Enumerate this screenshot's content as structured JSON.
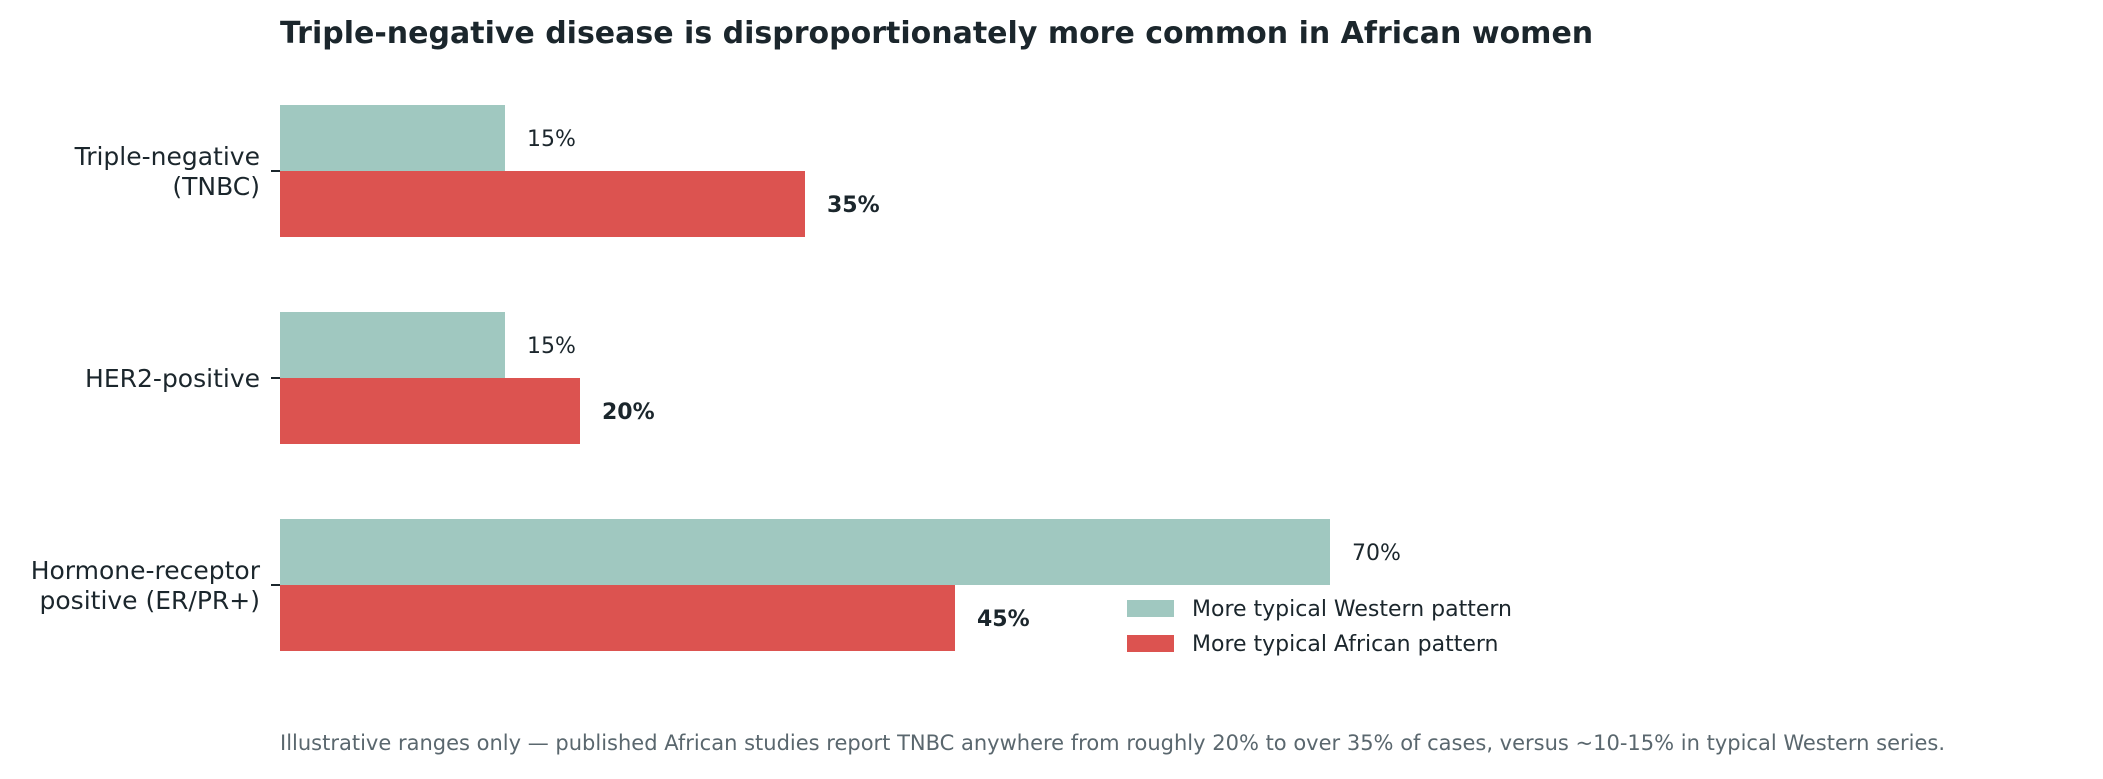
{
  "chart_data": {
    "type": "bar",
    "orientation": "horizontal",
    "title": "Triple-negative disease is disproportionately more common in African women",
    "categories": [
      [
        "Triple-negative",
        "(TNBC)"
      ],
      [
        "HER2-positive"
      ],
      [
        "Hormone-receptor",
        "positive (ER/PR+)"
      ]
    ],
    "series": [
      {
        "name": "More typical Western pattern",
        "color": "#a0c8c0",
        "values": [
          15,
          15,
          70
        ],
        "labels": [
          "15%",
          "15%",
          "70%"
        ],
        "label_weight": "normal"
      },
      {
        "name": "More typical African pattern",
        "color": "#dc5350",
        "values": [
          35,
          20,
          45
        ],
        "labels": [
          "35%",
          "20%",
          "45%"
        ],
        "label_weight": "bold"
      }
    ],
    "xlim": [
      0,
      100
    ],
    "xaxis_visible": false,
    "grid": false,
    "legend_position": "lower-center-right",
    "footnote": "Illustrative ranges only — published African studies report TNBC anywhere from roughly 20% to over 35% of cases, versus ~10-15% in typical Western series.",
    "colors": {
      "title": "#1b262c",
      "text": "#1b262c",
      "footnote": "#5a676e",
      "axis": "#1b262c"
    }
  }
}
